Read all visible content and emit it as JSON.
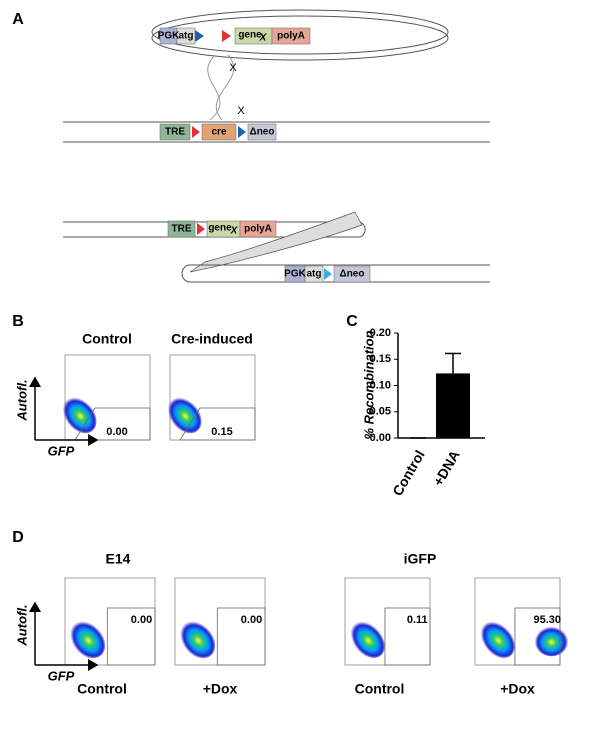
{
  "panel_labels": [
    "A",
    "B",
    "C",
    "D"
  ],
  "diagram": {
    "plasmid": {
      "promoter": "PGK",
      "start": "atg",
      "gene": "gene",
      "gene_sub": "X",
      "tail": "polyA",
      "crossover": "X"
    },
    "genome": {
      "promoter": "TRE",
      "recombinase": "cre",
      "marker": "Δneo",
      "crossover": "X"
    },
    "product_top": {
      "promoter": "TRE",
      "gene": "gene",
      "gene_sub": "X",
      "tail": "polyA"
    },
    "product_bottom": {
      "promoter": "PGK",
      "start": "atg",
      "marker": "Δneo"
    }
  },
  "panel_b": {
    "titles": [
      "Control",
      "Cre-induced"
    ],
    "y_axis": "Autofl.",
    "x_axis": "GFP",
    "gate_values": [
      "0.00",
      "0.15"
    ]
  },
  "chart_data": {
    "type": "bar",
    "y_label": "% Recombination",
    "categories": [
      "Control",
      "+DNA"
    ],
    "values": [
      0,
      0.123
    ],
    "errors": [
      0,
      0.038
    ],
    "color": "#000000",
    "ylim": [
      0,
      0.2
    ],
    "yticks": [
      {
        "value": 0,
        "label": "0.00"
      },
      {
        "value": 0.05,
        "label": "0.05"
      },
      {
        "value": 0.1,
        "label": "0.10"
      },
      {
        "value": 0.15,
        "label": "0.15"
      },
      {
        "value": 0.2,
        "label": "0.20"
      }
    ]
  },
  "panel_d": {
    "groups": [
      "E14",
      "iGFP"
    ],
    "conditions": [
      "Control",
      "+Dox",
      "Control",
      "+Dox"
    ],
    "y_axis": "Autofl.",
    "x_axis": "GFP",
    "gate_values": [
      "0.00",
      "0.00",
      "0.11",
      "95.30"
    ]
  }
}
